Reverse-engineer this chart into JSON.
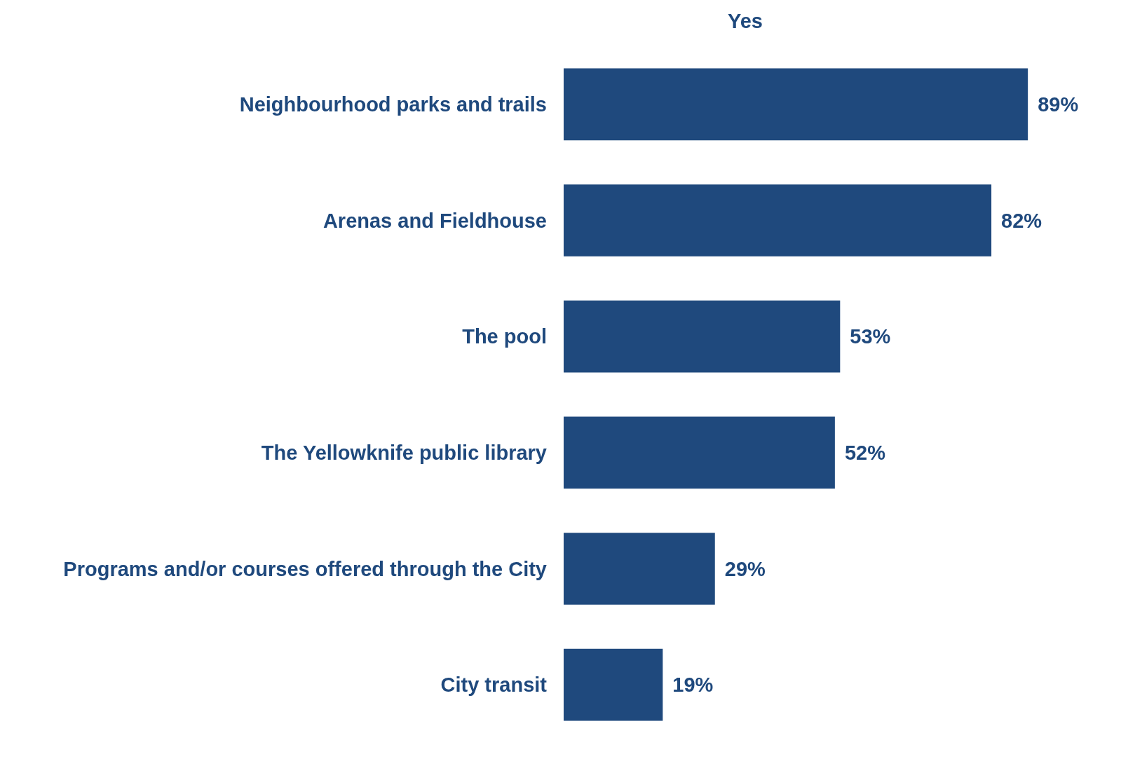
{
  "chart_data": {
    "type": "bar",
    "orientation": "horizontal",
    "title": "Yes",
    "categories": [
      "Neighbourhood parks and trails",
      "Arenas and Fieldhouse",
      "The pool",
      "The Yellowknife public library",
      "Programs and/or courses offered through the City",
      "City transit"
    ],
    "values": [
      89,
      82,
      53,
      52,
      29,
      19
    ],
    "value_labels": [
      "89%",
      "82%",
      "53%",
      "52%",
      "29%",
      "19%"
    ],
    "color": "#1f497d"
  }
}
